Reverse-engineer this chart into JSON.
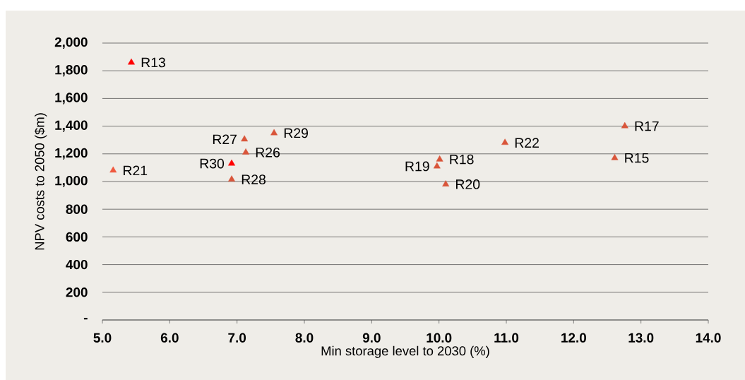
{
  "chart_data": {
    "type": "scatter",
    "xlabel": "Min storage level to 2030 (%)",
    "ylabel": "NPV costs to 2050 ($m)",
    "xlim": [
      5,
      14
    ],
    "ylim": [
      0,
      2000
    ],
    "xticks": [
      {
        "value": 5,
        "label": "5.0"
      },
      {
        "value": 6,
        "label": "6.0"
      },
      {
        "value": 7,
        "label": "7.0"
      },
      {
        "value": 8,
        "label": "8.0"
      },
      {
        "value": 9,
        "label": "9.0"
      },
      {
        "value": 10,
        "label": "10.0"
      },
      {
        "value": 11,
        "label": "11.0"
      },
      {
        "value": 12,
        "label": "12.0"
      },
      {
        "value": 13,
        "label": "13.0"
      },
      {
        "value": 14,
        "label": "14.0"
      }
    ],
    "yticks": [
      {
        "value": 0,
        "label": "-"
      },
      {
        "value": 200,
        "label": "200"
      },
      {
        "value": 400,
        "label": "400"
      },
      {
        "value": 600,
        "label": "600"
      },
      {
        "value": 800,
        "label": "800"
      },
      {
        "value": 1000,
        "label": "1,000"
      },
      {
        "value": 1200,
        "label": "1,200"
      },
      {
        "value": 1400,
        "label": "1,400"
      },
      {
        "value": 1600,
        "label": "1,600"
      },
      {
        "value": 1800,
        "label": "1,800"
      },
      {
        "value": 2000,
        "label": "2,000"
      }
    ],
    "grid": "y",
    "marker": "triangle",
    "series": [
      {
        "x": [
          5.43,
          5.16,
          7.11,
          7.55,
          7.13,
          6.92,
          6.92,
          9.97,
          10.01,
          10.1,
          10.98,
          12.76,
          12.61
        ],
        "values": [
          1860,
          1080,
          1305,
          1350,
          1210,
          1130,
          1015,
          1110,
          1160,
          980,
          1280,
          1400,
          1170
        ],
        "colors": [
          "#ff0000",
          "#f05a40",
          "#d9553a",
          "#d9553a",
          "#d9553a",
          "#ff0000",
          "#d9553a",
          "#d9553a",
          "#d9553a",
          "#d9553a",
          "#d9553a",
          "#d9553a",
          "#d9553a"
        ]
      }
    ],
    "annotations": [
      {
        "text": "R13",
        "x": 5.43,
        "y": 1860
      },
      {
        "text": "R21",
        "x": 5.16,
        "y": 1080
      },
      {
        "text": "R27",
        "x": 7.11,
        "y": 1305
      },
      {
        "text": "R29",
        "x": 7.55,
        "y": 1350
      },
      {
        "text": "R26",
        "x": 7.13,
        "y": 1210
      },
      {
        "text": "R30",
        "x": 6.92,
        "y": 1130
      },
      {
        "text": "R28",
        "x": 6.92,
        "y": 1015
      },
      {
        "text": "R19",
        "x": 9.97,
        "y": 1110
      },
      {
        "text": "R18",
        "x": 10.01,
        "y": 1160
      },
      {
        "text": "R20",
        "x": 10.1,
        "y": 980
      },
      {
        "text": "R22",
        "x": 10.98,
        "y": 1280
      },
      {
        "text": "R17",
        "x": 12.76,
        "y": 1400
      },
      {
        "text": "R15",
        "x": 12.61,
        "y": 1170
      }
    ]
  }
}
